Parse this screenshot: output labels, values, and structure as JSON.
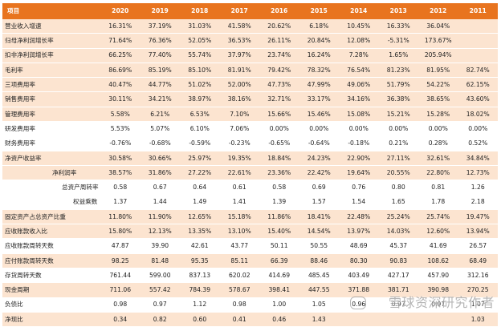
{
  "header": {
    "label": "项目",
    "years": [
      "2020",
      "2019",
      "2018",
      "2017",
      "2016",
      "2015",
      "2014",
      "2013",
      "2012",
      "2011"
    ]
  },
  "rows": [
    {
      "label": "营业收入增速",
      "indent": 0,
      "shade": true,
      "values": [
        "16.31%",
        "37.19%",
        "31.03%",
        "41.58%",
        "20.62%",
        "6.18%",
        "10.45%",
        "16.33%",
        "36.04%",
        ""
      ]
    },
    {
      "label": "归母净利润增长率",
      "indent": 0,
      "shade": true,
      "values": [
        "71.64%",
        "76.36%",
        "52.05%",
        "36.53%",
        "26.11%",
        "20.84%",
        "12.08%",
        "-5.31%",
        "173.67%",
        ""
      ]
    },
    {
      "label": "扣非净利润增长率",
      "indent": 0,
      "shade": true,
      "values": [
        "66.25%",
        "77.40%",
        "55.74%",
        "37.97%",
        "23.74%",
        "16.24%",
        "7.28%",
        "1.65%",
        "205.94%",
        ""
      ]
    },
    {
      "label": "毛利率",
      "indent": 0,
      "shade": true,
      "values": [
        "86.69%",
        "85.19%",
        "85.10%",
        "81.91%",
        "79.42%",
        "78.32%",
        "76.54%",
        "81.23%",
        "81.95%",
        "82.74%"
      ]
    },
    {
      "label": "三项费用率",
      "indent": 0,
      "shade": true,
      "values": [
        "40.47%",
        "44.77%",
        "51.02%",
        "52.00%",
        "47.73%",
        "47.99%",
        "49.06%",
        "51.79%",
        "54.22%",
        "62.15%"
      ]
    },
    {
      "label": "销售费用率",
      "indent": 0,
      "shade": true,
      "values": [
        "30.11%",
        "34.21%",
        "38.97%",
        "38.16%",
        "32.71%",
        "33.17%",
        "34.16%",
        "36.38%",
        "38.65%",
        "43.60%"
      ]
    },
    {
      "label": "管理费用率",
      "indent": 0,
      "shade": true,
      "values": [
        "5.58%",
        "6.21%",
        "6.53%",
        "7.10%",
        "15.66%",
        "15.46%",
        "15.08%",
        "15.21%",
        "15.28%",
        "18.02%"
      ]
    },
    {
      "label": "研发费用率",
      "indent": 0,
      "shade": false,
      "values": [
        "5.53%",
        "5.07%",
        "6.10%",
        "7.06%",
        "0.00%",
        "0.00%",
        "0.00%",
        "0.00%",
        "0.00%",
        "0.00%"
      ]
    },
    {
      "label": "财务费用率",
      "indent": 0,
      "shade": false,
      "values": [
        "-0.76%",
        "-0.68%",
        "-0.59%",
        "-0.23%",
        "-0.65%",
        "-0.64%",
        "-0.18%",
        "0.21%",
        "0.28%",
        "0.52%"
      ]
    },
    {
      "label": "净资产收益率",
      "indent": 0,
      "shade": true,
      "values": [
        "30.58%",
        "30.66%",
        "25.97%",
        "19.35%",
        "18.84%",
        "24.23%",
        "22.90%",
        "27.11%",
        "32.61%",
        "34.84%"
      ]
    },
    {
      "label": "净利润率",
      "indent": 1,
      "shade": true,
      "values": [
        "38.57%",
        "31.86%",
        "27.22%",
        "22.61%",
        "23.36%",
        "22.42%",
        "19.64%",
        "20.55%",
        "22.80%",
        "12.73%"
      ]
    },
    {
      "label": "总资产周转率",
      "indent": 2,
      "shade": false,
      "values": [
        "0.58",
        "0.67",
        "0.64",
        "0.61",
        "0.58",
        "0.69",
        "0.76",
        "0.80",
        "0.81",
        "1.26"
      ]
    },
    {
      "label": "权益乘数",
      "indent": 3,
      "shade": false,
      "values": [
        "1.37",
        "1.44",
        "1.49",
        "1.41",
        "1.39",
        "1.57",
        "1.54",
        "1.65",
        "1.78",
        "2.18"
      ]
    },
    {
      "label": "固定资产占总资产比重",
      "indent": 0,
      "shade": true,
      "values": [
        "11.80%",
        "11.90%",
        "12.65%",
        "15.18%",
        "11.86%",
        "18.41%",
        "22.48%",
        "25.24%",
        "25.74%",
        "19.47%"
      ]
    },
    {
      "label": "应收账款收入比",
      "indent": 0,
      "shade": true,
      "values": [
        "15.80%",
        "12.13%",
        "13.35%",
        "13.10%",
        "15.40%",
        "14.54%",
        "13.97%",
        "14.03%",
        "12.60%",
        "13.94%"
      ]
    },
    {
      "label": "应收账款周转天数",
      "indent": 0,
      "shade": false,
      "values": [
        "47.87",
        "39.90",
        "42.61",
        "43.77",
        "50.11",
        "50.55",
        "48.69",
        "45.37",
        "41.69",
        "26.57"
      ]
    },
    {
      "label": "应付账款周转天数",
      "indent": 0,
      "shade": true,
      "values": [
        "98.25",
        "81.48",
        "95.35",
        "85.11",
        "66.39",
        "88.46",
        "80.30",
        "90.83",
        "108.62",
        "68.49"
      ]
    },
    {
      "label": "存货周转天数",
      "indent": 0,
      "shade": false,
      "values": [
        "761.44",
        "599.00",
        "837.13",
        "620.02",
        "414.69",
        "485.45",
        "403.49",
        "427.17",
        "457.90",
        "312.16"
      ]
    },
    {
      "label": "现金周期",
      "indent": 0,
      "shade": true,
      "values": [
        "711.06",
        "557.42",
        "784.39",
        "578.67",
        "398.41",
        "447.55",
        "371.88",
        "381.71",
        "390.98",
        "270.25"
      ]
    },
    {
      "label": "负债比",
      "indent": 0,
      "shade": false,
      "values": [
        "0.98",
        "0.97",
        "1.12",
        "0.98",
        "1.00",
        "1.05",
        "0.96",
        "0.97",
        "0.97",
        "1.07"
      ]
    },
    {
      "label": "净现比",
      "indent": 0,
      "shade": true,
      "values": [
        "0.34",
        "0.82",
        "0.60",
        "0.41",
        "0.46",
        "1.43",
        "",
        "",
        "",
        "1.03"
      ]
    }
  ],
  "watermark": "雪球资深研究作者"
}
